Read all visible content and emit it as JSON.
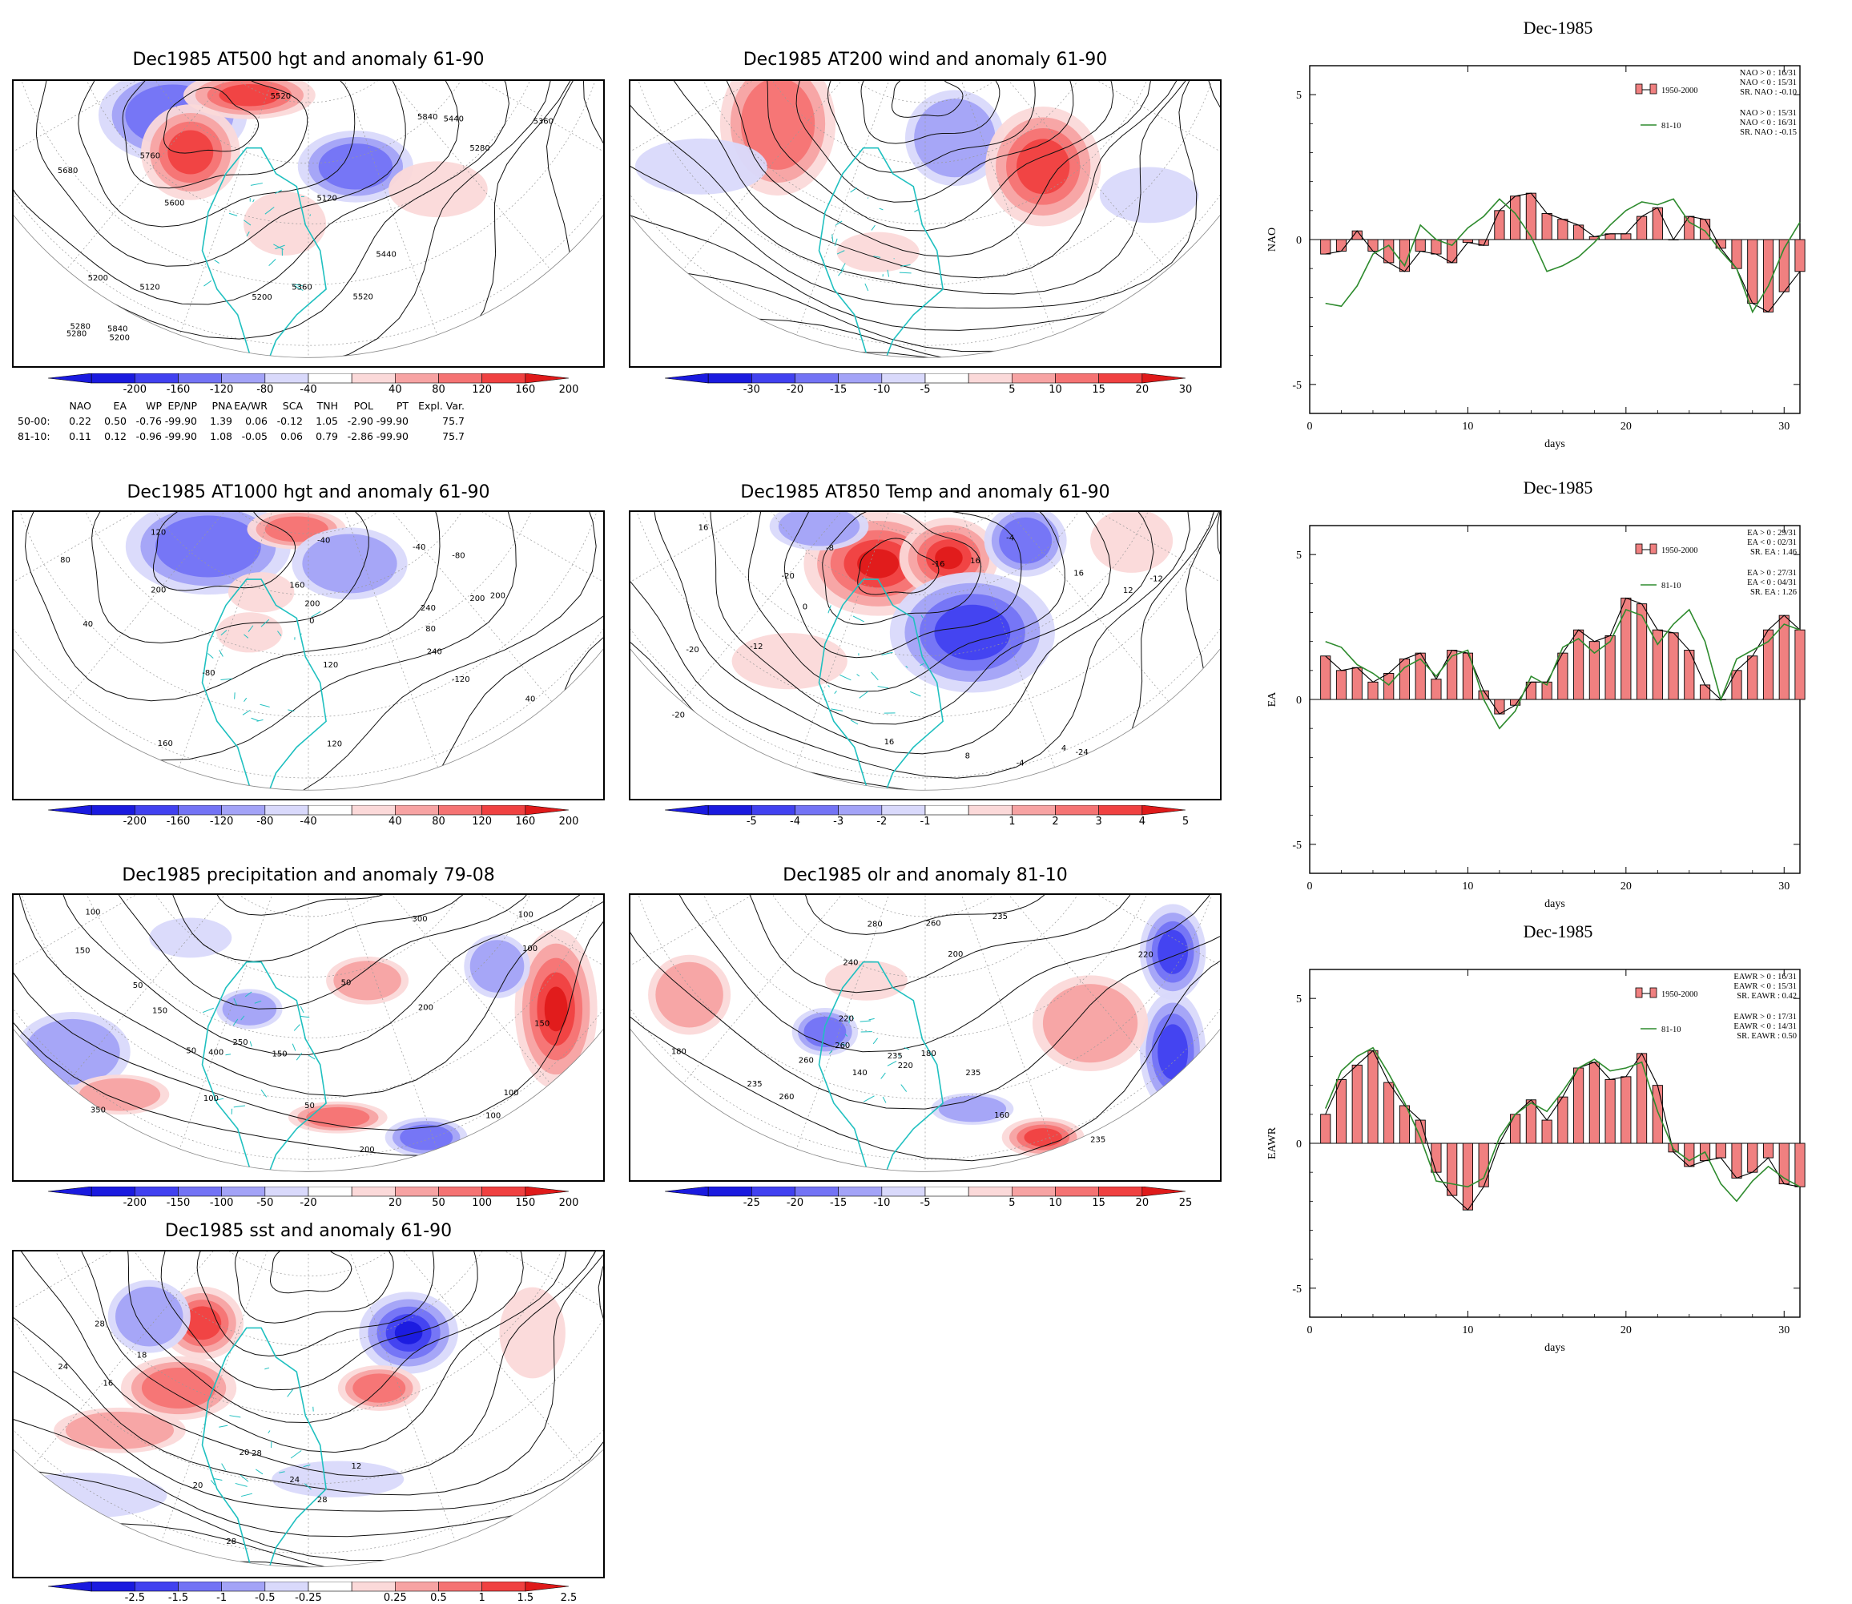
{
  "maps": [
    {
      "id": "m1",
      "title": "Dec1985 AT500 hgt and anomaly 61-90",
      "labels": [
        "5280",
        "5200",
        "5120",
        "5200",
        "5280",
        "5360",
        "5440",
        "5520",
        "5120",
        "5200",
        "5280",
        "5360",
        "5440",
        "5520",
        "5600",
        "5680",
        "5760",
        "5840",
        "5840"
      ],
      "colorbar": [
        "-200",
        "-160",
        "-120",
        "-80",
        "-40",
        "40",
        "80",
        "120",
        "160",
        "200"
      ]
    },
    {
      "id": "m2",
      "title": "Dec1985 AT200 wind and anomaly 61-90",
      "labels": [],
      "colorbar": [
        "-30",
        "-20",
        "-15",
        "-10",
        "-5",
        "5",
        "10",
        "15",
        "20",
        "30"
      ]
    },
    {
      "id": "m3",
      "title": "Dec1985 AT1000 hgt and anomaly 61-90",
      "labels": [
        "-120",
        "-80",
        "-40",
        "0",
        "40",
        "80",
        "120",
        "240",
        "200",
        "160",
        "200",
        "120",
        "200",
        "240",
        "160",
        "120",
        "80",
        "40",
        "-40",
        "200",
        "-80"
      ],
      "colorbar": [
        "-200",
        "-160",
        "-120",
        "-80",
        "-40",
        "40",
        "80",
        "120",
        "160",
        "200"
      ]
    },
    {
      "id": "m4",
      "title": "Dec1985 AT850 Temp and anomaly 61-90",
      "labels": [
        "-4",
        "-20",
        "-24",
        "-20",
        "-12",
        "-16",
        "-12",
        "-8",
        "-4",
        "0",
        "4",
        "8",
        "16",
        "12",
        "16",
        "16",
        "-20",
        "16"
      ],
      "colorbar": [
        "-5",
        "-4",
        "-3",
        "-2",
        "-1",
        "1",
        "2",
        "3",
        "4",
        "5"
      ]
    },
    {
      "id": "m5",
      "title": "Dec1985 precipitation and anomaly 79-08",
      "labels": [
        "50",
        "150",
        "100",
        "100",
        "50",
        "150",
        "200",
        "100",
        "50",
        "100",
        "250",
        "200",
        "150",
        "100",
        "300",
        "350",
        "400",
        "50",
        "100",
        "150"
      ],
      "colorbar": [
        "-200",
        "-150",
        "-100",
        "-50",
        "-20",
        "20",
        "50",
        "100",
        "150",
        "200"
      ]
    },
    {
      "id": "m6",
      "title": "Dec1985 olr and anomaly 81-10",
      "labels": [
        "220",
        "280",
        "180",
        "160",
        "140",
        "200",
        "180",
        "235",
        "260",
        "240",
        "220",
        "235",
        "260",
        "260",
        "235",
        "220",
        "235",
        "260",
        "235"
      ],
      "colorbar": [
        "-25",
        "-20",
        "-15",
        "-10",
        "-5",
        "5",
        "10",
        "15",
        "20",
        "25"
      ]
    },
    {
      "id": "m7",
      "title": "Dec1985 sst and anomaly 61-90",
      "labels": [
        "28",
        "12",
        "16",
        "20",
        "24",
        "28",
        "20",
        "24",
        "18",
        "28",
        "28"
      ],
      "colorbar": [
        "-2.5",
        "-1.5",
        "-1",
        "-0.5",
        "-0.25",
        "0.25",
        "0.5",
        "1",
        "1.5",
        "2.5"
      ]
    }
  ],
  "colors": {
    "blue": [
      "#1a1adf",
      "#4141f0",
      "#7373f5",
      "#a3a3f7",
      "#d9d9fb"
    ],
    "red": [
      "#fbd9d9",
      "#f7a3a3",
      "#f57373",
      "#f04141",
      "#df1a1a"
    ],
    "coast": "#20c0c0",
    "bar": "#f08080",
    "line81": "#2e8b2e"
  },
  "indices_table": {
    "header": [
      "NAO",
      "EA",
      "WP",
      "EP/NP",
      "PNA",
      "EA/WR",
      "SCA",
      "TNH",
      "POL",
      "PT",
      "Expl. Var."
    ],
    "rows": [
      {
        "label": "50-00:",
        "values": [
          "0.22",
          "0.50",
          "-0.76",
          "-99.90",
          "1.39",
          "0.06",
          "-0.12",
          "1.05",
          "-2.90",
          "-99.90",
          "75.7"
        ]
      },
      {
        "label": "81-10:",
        "values": [
          "0.11",
          "0.12",
          "-0.96",
          "-99.90",
          "1.08",
          "-0.05",
          "0.06",
          "0.79",
          "-2.86",
          "-99.90",
          "75.7"
        ]
      }
    ]
  },
  "chart_data": [
    {
      "type": "bar",
      "title": "Dec-1985",
      "ylabel": "NAO",
      "xlabel": "days",
      "xlim": [
        0,
        31
      ],
      "ylim": [
        -6,
        6
      ],
      "yticks": [
        "5",
        "0",
        "-5"
      ],
      "xticks": [
        "0",
        "10",
        "20",
        "30"
      ],
      "x": [
        1,
        2,
        3,
        4,
        5,
        6,
        7,
        8,
        9,
        10,
        11,
        12,
        13,
        14,
        15,
        16,
        17,
        18,
        19,
        20,
        21,
        22,
        23,
        24,
        25,
        26,
        27,
        28,
        29,
        30,
        31
      ],
      "series": [
        {
          "name": "1950-2000",
          "style": "bar",
          "values": [
            -0.5,
            -0.4,
            0.3,
            -0.4,
            -0.8,
            -1.1,
            -0.4,
            -0.5,
            -0.8,
            -0.1,
            -0.2,
            1.0,
            1.5,
            1.6,
            0.9,
            0.7,
            0.5,
            0.1,
            0.2,
            0.2,
            0.8,
            1.1,
            0.0,
            0.8,
            0.7,
            -0.3,
            -1.0,
            -2.2,
            -2.5,
            -1.8,
            -1.1
          ]
        },
        {
          "name": "81-10",
          "style": "line",
          "values": [
            -2.2,
            -2.3,
            -1.6,
            -0.5,
            -0.2,
            -0.9,
            0.5,
            0.0,
            -0.2,
            0.4,
            0.8,
            1.4,
            0.9,
            0.1,
            -1.1,
            -0.9,
            -0.6,
            -0.1,
            0.5,
            1.0,
            1.3,
            1.2,
            1.4,
            0.6,
            0.3,
            -0.4,
            -1.0,
            -2.5,
            -1.6,
            -0.3,
            0.6
          ]
        }
      ],
      "legend": {
        "bar": "1950-2000",
        "line": "81-10"
      },
      "stats": [
        "NAO > 0 : 16/31",
        "NAO < 0 : 15/31",
        "SR. NAO : -0.10",
        "NAO > 0 : 15/31",
        "NAO < 0 : 16/31",
        "SR. NAO : -0.15"
      ]
    },
    {
      "type": "bar",
      "title": "Dec-1985",
      "ylabel": "EA",
      "xlabel": "days",
      "xlim": [
        0,
        31
      ],
      "ylim": [
        -6,
        6
      ],
      "yticks": [
        "5",
        "0",
        "-5"
      ],
      "xticks": [
        "0",
        "10",
        "20",
        "30"
      ],
      "x": [
        1,
        2,
        3,
        4,
        5,
        6,
        7,
        8,
        9,
        10,
        11,
        12,
        13,
        14,
        15,
        16,
        17,
        18,
        19,
        20,
        21,
        22,
        23,
        24,
        25,
        26,
        27,
        28,
        29,
        30,
        31
      ],
      "series": [
        {
          "name": "1950-2000",
          "style": "bar",
          "values": [
            1.5,
            1.0,
            1.1,
            0.6,
            0.9,
            1.4,
            1.6,
            0.7,
            1.7,
            1.6,
            0.3,
            -0.5,
            -0.2,
            0.6,
            0.6,
            1.6,
            2.4,
            2.0,
            2.2,
            3.5,
            3.3,
            2.4,
            2.3,
            1.7,
            0.5,
            0.0,
            1.0,
            1.5,
            2.4,
            2.9,
            2.4
          ]
        },
        {
          "name": "81-10",
          "style": "line",
          "values": [
            2.0,
            1.8,
            1.2,
            0.9,
            0.5,
            1.1,
            1.4,
            0.8,
            1.5,
            1.7,
            0.0,
            -1.0,
            -0.4,
            0.8,
            0.5,
            1.8,
            2.1,
            1.6,
            2.0,
            3.1,
            2.9,
            1.9,
            2.6,
            3.1,
            2.0,
            0.0,
            1.4,
            1.7,
            2.0,
            2.6,
            2.4
          ]
        }
      ],
      "legend": {
        "bar": "1950-2000",
        "line": "81-10"
      },
      "stats": [
        "EA > 0 : 29/31",
        "EA < 0 : 02/31",
        "SR. EA : 1.46",
        "EA > 0 : 27/31",
        "EA < 0 : 04/31",
        "SR. EA : 1.26"
      ]
    },
    {
      "type": "bar",
      "title": "Dec-1985",
      "ylabel": "EAWR",
      "xlabel": "days",
      "xlim": [
        0,
        31
      ],
      "ylim": [
        -6,
        6
      ],
      "yticks": [
        "5",
        "0",
        "-5"
      ],
      "xticks": [
        "0",
        "10",
        "20",
        "30"
      ],
      "x": [
        1,
        2,
        3,
        4,
        5,
        6,
        7,
        8,
        9,
        10,
        11,
        12,
        13,
        14,
        15,
        16,
        17,
        18,
        19,
        20,
        21,
        22,
        23,
        24,
        25,
        26,
        27,
        28,
        29,
        30,
        31
      ],
      "series": [
        {
          "name": "1950-2000",
          "style": "bar",
          "values": [
            1.0,
            2.2,
            2.7,
            3.2,
            2.1,
            1.3,
            0.8,
            -1.0,
            -1.8,
            -2.3,
            -1.5,
            0.0,
            1.0,
            1.5,
            0.8,
            1.6,
            2.6,
            2.8,
            2.2,
            2.3,
            3.1,
            2.0,
            -0.3,
            -0.8,
            -0.6,
            -0.5,
            -1.2,
            -1.0,
            -0.5,
            -1.4,
            -1.5
          ]
        },
        {
          "name": "81-10",
          "style": "line",
          "values": [
            1.2,
            2.5,
            3.0,
            3.3,
            2.4,
            1.4,
            0.2,
            -1.3,
            -1.4,
            -1.5,
            -1.2,
            0.2,
            1.0,
            1.4,
            1.1,
            1.8,
            2.6,
            2.9,
            2.5,
            2.6,
            2.8,
            1.1,
            -0.2,
            -0.6,
            -0.3,
            -1.4,
            -2.0,
            -1.3,
            -0.8,
            -1.2,
            -1.5
          ]
        }
      ],
      "legend": {
        "bar": "1950-2000",
        "line": "81-10"
      },
      "stats": [
        "EAWR > 0 : 16/31",
        "EAWR < 0 : 15/31",
        "SR. EAWR : 0.42",
        "EAWR > 0 : 17/31",
        "EAWR < 0 : 14/31",
        "SR. EAWR : 0.50"
      ]
    }
  ]
}
